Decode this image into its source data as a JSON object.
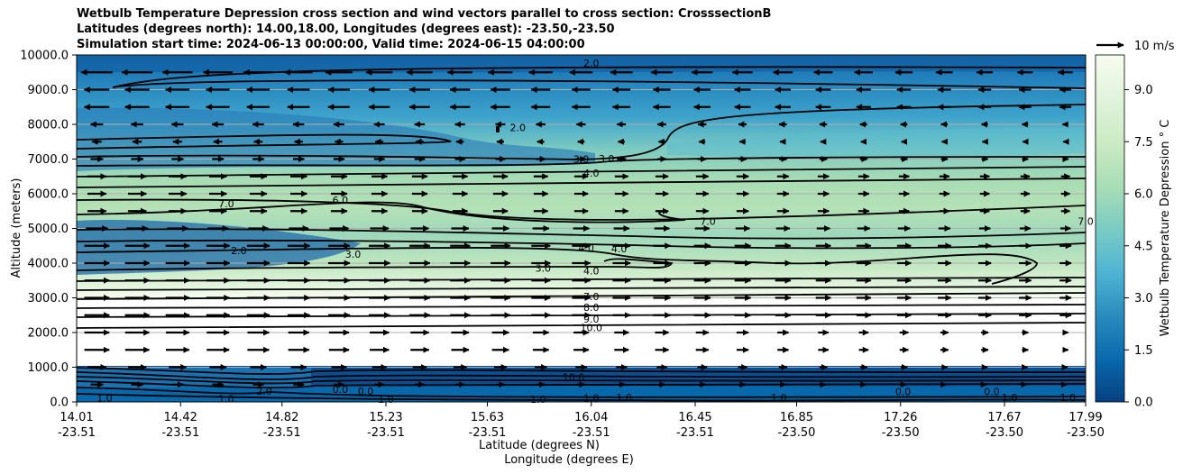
{
  "chart_data": {
    "type": "contourf",
    "title_lines": [
      "Wetbulb Temperature Depression cross section and wind vectors parallel to cross section: CrosssectionB",
      "Latitudes (degrees north): 14.00,18.00, Longitudes (degrees east): -23.50,-23.50",
      "Simulation start time: 2024-06-13 00:00:00, Valid time: 2024-06-15 04:00:00"
    ],
    "ylabel": "Altitude (meters)",
    "xlabel_lat": "Latitude (degrees N)",
    "xlabel_lon": "Longitude (degrees E)",
    "ylim": [
      0,
      10000
    ],
    "y_ticks": [
      "0.0",
      "1000.0",
      "2000.0",
      "3000.0",
      "4000.0",
      "5000.0",
      "6000.0",
      "7000.0",
      "8000.0",
      "9000.0",
      "10000.0"
    ],
    "x_ticks_lat": [
      "14.01",
      "14.42",
      "14.82",
      "15.23",
      "15.63",
      "16.04",
      "16.45",
      "16.85",
      "17.26",
      "17.67",
      "17.99"
    ],
    "x_ticks_lon": [
      "-23.51",
      "-23.51",
      "-23.51",
      "-23.51",
      "-23.51",
      "-23.51",
      "-23.51",
      "-23.50",
      "-23.50",
      "-23.50",
      "-23.50"
    ],
    "grid": "horizontal",
    "colorbar": {
      "label": "Wetbulb Temperature Depression ° C",
      "range": [
        0,
        10
      ],
      "ticks": [
        "0.0",
        "1.5",
        "3.0",
        "4.5",
        "6.0",
        "7.5",
        "9.0"
      ],
      "colormap": "GnBu"
    },
    "quiver_key": "10 m/s",
    "contour_labels": [
      {
        "text": "2.0",
        "lat": 16.04,
        "alt": 9750
      },
      {
        "text": "2.0",
        "lat": 15.75,
        "alt": 7900
      },
      {
        "text": "3.0",
        "lat": 16.0,
        "alt": 6990
      },
      {
        "text": "3.0",
        "lat": 16.1,
        "alt": 7000
      },
      {
        "text": "4.0",
        "lat": 16.04,
        "alt": 6580
      },
      {
        "text": "7.0",
        "lat": 14.6,
        "alt": 5700
      },
      {
        "text": "6.0",
        "lat": 15.05,
        "alt": 5800
      },
      {
        "text": "7.0",
        "lat": 16.5,
        "alt": 5200
      },
      {
        "text": "7.0",
        "lat": 17.99,
        "alt": 5200
      },
      {
        "text": "2.0",
        "lat": 14.65,
        "alt": 4350
      },
      {
        "text": "3.0",
        "lat": 15.1,
        "alt": 4250
      },
      {
        "text": "4.0",
        "lat": 16.02,
        "alt": 4430
      },
      {
        "text": "4.0",
        "lat": 16.15,
        "alt": 4400
      },
      {
        "text": "3.0",
        "lat": 15.85,
        "alt": 3850
      },
      {
        "text": "4.0",
        "lat": 16.04,
        "alt": 3770
      },
      {
        "text": "7.0",
        "lat": 16.04,
        "alt": 3030
      },
      {
        "text": "8.0",
        "lat": 16.04,
        "alt": 2710
      },
      {
        "text": "9.0",
        "lat": 16.04,
        "alt": 2380
      },
      {
        "text": "10.0",
        "lat": 16.04,
        "alt": 2130
      },
      {
        "text": "10.0",
        "lat": 15.97,
        "alt": 700
      },
      {
        "text": "1.0",
        "lat": 14.12,
        "alt": 100
      },
      {
        "text": "2.0",
        "lat": 14.75,
        "alt": 300
      },
      {
        "text": "1.0",
        "lat": 14.6,
        "alt": 80
      },
      {
        "text": "0.0",
        "lat": 15.05,
        "alt": 350
      },
      {
        "text": "0.0",
        "lat": 15.15,
        "alt": 300
      },
      {
        "text": "1.0",
        "lat": 15.23,
        "alt": 60
      },
      {
        "text": "1.0",
        "lat": 15.83,
        "alt": 60
      },
      {
        "text": "1.0",
        "lat": 16.04,
        "alt": 100
      },
      {
        "text": "1.0",
        "lat": 16.17,
        "alt": 120
      },
      {
        "text": "1.0",
        "lat": 16.78,
        "alt": 120
      },
      {
        "text": "0.0",
        "lat": 17.27,
        "alt": 280
      },
      {
        "text": "0.0",
        "lat": 17.62,
        "alt": 280
      },
      {
        "text": "1.0",
        "lat": 17.69,
        "alt": 120
      },
      {
        "text": "1.0",
        "lat": 17.92,
        "alt": 120
      }
    ],
    "wind_rows": [
      {
        "alt": 9500,
        "lat_from": 14.01,
        "lat_to": 17.99,
        "u": -5
      },
      {
        "alt": 9000,
        "lat_from": 14.01,
        "lat_to": 17.99,
        "u": -4
      },
      {
        "alt": 8500,
        "lat_from": 14.01,
        "lat_to": 17.99,
        "u": -4
      },
      {
        "alt": 8000,
        "lat_from": 14.01,
        "lat_to": 17.99,
        "u": -2
      },
      {
        "alt": 7500,
        "lat_from": 14.01,
        "lat_to": 17.99,
        "u": -1.5
      },
      {
        "alt": 7000,
        "lat_from": 14.01,
        "lat_to": 17.99,
        "u": 2
      },
      {
        "alt": 6500,
        "lat_from": 14.01,
        "lat_to": 17.99,
        "u": 3
      },
      {
        "alt": 6000,
        "lat_from": 14.01,
        "lat_to": 17.99,
        "u": 3
      },
      {
        "alt": 5500,
        "lat_from": 14.01,
        "lat_to": 17.99,
        "u": 3
      },
      {
        "alt": 5000,
        "lat_from": 14.01,
        "lat_to": 17.99,
        "u": 3.5
      },
      {
        "alt": 4500,
        "lat_from": 14.01,
        "lat_to": 17.99,
        "u": 4
      },
      {
        "alt": 4000,
        "lat_from": 14.01,
        "lat_to": 17.99,
        "u": 4
      },
      {
        "alt": 3500,
        "lat_from": 14.01,
        "lat_to": 17.99,
        "u": 4
      },
      {
        "alt": 3000,
        "lat_from": 14.01,
        "lat_to": 17.99,
        "u": 4
      },
      {
        "alt": 2500,
        "lat_from": 14.01,
        "lat_to": 17.99,
        "u": 4
      },
      {
        "alt": 2000,
        "lat_from": 14.01,
        "lat_to": 17.99,
        "u": 4
      },
      {
        "alt": 1500,
        "lat_from": 14.01,
        "lat_to": 17.99,
        "u": 4
      },
      {
        "alt": 1000,
        "lat_from": 14.01,
        "lat_to": 17.99,
        "u": 3
      },
      {
        "alt": 500,
        "lat_from": 14.01,
        "lat_to": 17.99,
        "u": 2
      }
    ]
  }
}
